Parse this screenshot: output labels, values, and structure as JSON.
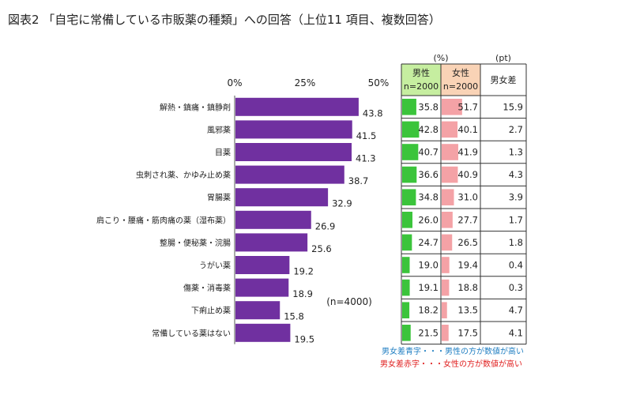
{
  "title": "図表2 「自宅に常備している市販薬の種類」への回答（上位11 項目、複数回答）",
  "chart_data": {
    "type": "bar",
    "orientation": "horizontal",
    "xlim": [
      0,
      50
    ],
    "ticks": [
      "0%",
      "25%",
      "50%"
    ],
    "tick_values": [
      0,
      25,
      50
    ],
    "note": "(n=4000)",
    "categories": [
      "解熱・鎮痛・鎮静剤",
      "風邪薬",
      "目薬",
      "虫刺され薬、かゆみ止め薬",
      "胃腸薬",
      "肩こり・腰痛・筋肉痛の薬（湿布薬）",
      "整腸・便秘薬・浣腸",
      "うがい薬",
      "傷薬・消毒薬",
      "下痢止め薬",
      "常備している薬はない"
    ],
    "values": [
      43.8,
      41.5,
      41.3,
      38.7,
      32.9,
      26.9,
      25.6,
      19.2,
      18.9,
      15.8,
      19.5
    ],
    "bar_color": "#7030a0"
  },
  "table": {
    "unit_pct": "(%)",
    "unit_pt": "(pt)",
    "male_header": "男性",
    "male_n": "n=2000",
    "female_header": "女性",
    "female_n": "n=2000",
    "diff_header": "男女差",
    "male": [
      "35.8",
      "42.8",
      "40.7",
      "36.6",
      "34.8",
      "26.0",
      "24.7",
      "19.0",
      "19.1",
      "18.2",
      "21.5"
    ],
    "female": [
      "51.7",
      "40.1",
      "41.9",
      "40.9",
      "31.0",
      "27.7",
      "26.5",
      "19.4",
      "18.8",
      "13.5",
      "17.5"
    ],
    "diff": [
      "15.9",
      "2.7",
      "1.3",
      "4.3",
      "3.9",
      "1.7",
      "1.8",
      "0.4",
      "0.3",
      "4.7",
      "4.1"
    ],
    "diff_colors": [
      "#e02020",
      "#1f7ec2",
      "#e02020",
      "#e02020",
      "#1f7ec2",
      "#e02020",
      "#e02020",
      "#e02020",
      "#1f7ec2",
      "#1f7ec2",
      "#1f7ec2"
    ],
    "male_bar_color": "#3bc43b",
    "female_bar_color": "#f4a2a6",
    "male_header_bg": "#c6eea0",
    "female_header_bg": "#f9d3b6"
  },
  "legend": {
    "blue_text": "男女差青字・・・男性の方が数値が高い",
    "red_text": "男女差赤字・・・女性の方が数値が高い",
    "blue_color": "#1f7ec2",
    "red_color": "#e02020"
  }
}
